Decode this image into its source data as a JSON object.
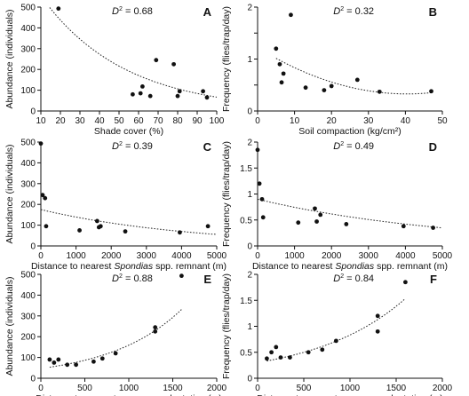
{
  "chart_data": [
    {
      "panel": "A",
      "type": "scatter",
      "xlabel": "Shade cover (%)",
      "ylabel": "Abundance (individuals)",
      "annotation": "D² = 0.68",
      "xlim": [
        10,
        100
      ],
      "ylim": [
        0,
        500
      ],
      "xticks": [
        10,
        20,
        30,
        40,
        50,
        60,
        70,
        80,
        90,
        100
      ],
      "yticks": [
        0,
        100,
        200,
        300,
        400,
        500
      ],
      "points": [
        [
          19,
          493
        ],
        [
          57,
          80
        ],
        [
          61,
          85
        ],
        [
          62,
          118
        ],
        [
          66,
          72
        ],
        [
          69,
          245
        ],
        [
          78,
          225
        ],
        [
          80,
          72
        ],
        [
          81,
          95
        ],
        [
          93,
          95
        ],
        [
          95,
          65
        ]
      ],
      "trend": {
        "model": "exp",
        "a": 700,
        "b": -0.0235
      }
    },
    {
      "panel": "B",
      "type": "scatter",
      "xlabel": "Soil compaction (kg/cm²)",
      "ylabel": "Frequency (flies/trap/day)",
      "annotation": "D² = 0.32",
      "xlim": [
        0,
        50
      ],
      "ylim": [
        0,
        2
      ],
      "xticks": [
        0,
        10,
        20,
        30,
        40,
        50
      ],
      "yticks": [
        0,
        0.5,
        1,
        1.5,
        2
      ],
      "yticklabels": [
        "0",
        "",
        "1",
        "",
        "2"
      ],
      "points": [
        [
          5,
          1.2
        ],
        [
          6,
          0.9
        ],
        [
          6.5,
          0.55
        ],
        [
          7,
          0.72
        ],
        [
          9,
          1.85
        ],
        [
          13,
          0.45
        ],
        [
          18,
          0.4
        ],
        [
          20,
          0.48
        ],
        [
          27,
          0.6
        ],
        [
          33,
          0.37
        ],
        [
          47,
          0.38
        ]
      ],
      "trend": {
        "model": "quadratic",
        "c0": 1.22,
        "c1": -0.044,
        "c2": 0.000543,
        "xmin": 5,
        "xmax": 47
      }
    },
    {
      "panel": "C",
      "type": "scatter",
      "xlabel": "Distance to nearest Spondias spp. remnant (m)",
      "ylabel": "Abundance (individuals)",
      "annotation": "D² = 0.39",
      "xlim": [
        0,
        5000
      ],
      "ylim": [
        0,
        500
      ],
      "xticks": [
        0,
        1000,
        2000,
        3000,
        4000,
        5000
      ],
      "yticks": [
        0,
        100,
        200,
        300,
        400,
        500
      ],
      "points": [
        [
          0,
          493
        ],
        [
          50,
          245
        ],
        [
          120,
          230
        ],
        [
          150,
          95
        ],
        [
          1100,
          75
        ],
        [
          1600,
          120
        ],
        [
          1650,
          90
        ],
        [
          1700,
          95
        ],
        [
          2400,
          70
        ],
        [
          3950,
          65
        ],
        [
          4750,
          95
        ]
      ],
      "trend": {
        "model": "exp",
        "a": 175,
        "b": -0.00023
      }
    },
    {
      "panel": "D",
      "type": "scatter",
      "xlabel": "Distance to nearest Spondias spp. remnant (m)",
      "ylabel": "Frequency (flies/trap/day)",
      "annotation": "D² = 0.49",
      "xlim": [
        0,
        5000
      ],
      "ylim": [
        0,
        2
      ],
      "xticks": [
        0,
        1000,
        2000,
        3000,
        4000,
        5000
      ],
      "yticks": [
        0,
        0.5,
        1,
        1.5,
        2
      ],
      "yticklabels": [
        "0",
        "0.5",
        "1",
        "1.5",
        "2"
      ],
      "points": [
        [
          0,
          1.85
        ],
        [
          50,
          1.2
        ],
        [
          120,
          0.9
        ],
        [
          150,
          0.55
        ],
        [
          1100,
          0.45
        ],
        [
          1550,
          0.72
        ],
        [
          1600,
          0.47
        ],
        [
          1700,
          0.6
        ],
        [
          2400,
          0.42
        ],
        [
          3950,
          0.38
        ],
        [
          4750,
          0.35
        ]
      ],
      "trend": {
        "model": "exp",
        "a": 0.9,
        "b": -0.00019
      }
    },
    {
      "panel": "E",
      "type": "scatter",
      "xlabel": "Distance to nearest sugarcane plantation (m)",
      "ylabel": "Abundance (individuals)",
      "annotation": "D² = 0.88",
      "xlim": [
        0,
        2000
      ],
      "ylim": [
        0,
        500
      ],
      "xticks": [
        0,
        500,
        1000,
        1500,
        2000
      ],
      "yticks": [
        0,
        100,
        200,
        300,
        400,
        500
      ],
      "points": [
        [
          100,
          90
        ],
        [
          150,
          75
        ],
        [
          200,
          90
        ],
        [
          300,
          65
        ],
        [
          400,
          65
        ],
        [
          600,
          80
        ],
        [
          700,
          95
        ],
        [
          850,
          120
        ],
        [
          1300,
          225
        ],
        [
          1300,
          245
        ],
        [
          1600,
          493
        ]
      ],
      "trend": {
        "model": "exp",
        "a": 47,
        "b": 0.00122,
        "xmin": 100,
        "xmax": 1600
      }
    },
    {
      "panel": "F",
      "type": "scatter",
      "xlabel": "Distance to nearest sugarcane plantation (m)",
      "ylabel": "Frequency (flies/trap/day)",
      "annotation": "D² = 0.84",
      "xlim": [
        0,
        2000
      ],
      "ylim": [
        0,
        2
      ],
      "xticks": [
        0,
        500,
        1000,
        1500,
        2000
      ],
      "yticks": [
        0,
        0.5,
        1,
        1.5,
        2
      ],
      "yticklabels": [
        "0",
        "0.5",
        "1",
        "1.5",
        "2"
      ],
      "points": [
        [
          100,
          0.38
        ],
        [
          150,
          0.5
        ],
        [
          200,
          0.6
        ],
        [
          250,
          0.4
        ],
        [
          350,
          0.4
        ],
        [
          550,
          0.5
        ],
        [
          700,
          0.55
        ],
        [
          850,
          0.72
        ],
        [
          1300,
          0.9
        ],
        [
          1300,
          1.2
        ],
        [
          1600,
          1.85
        ]
      ],
      "trend": {
        "model": "exp",
        "a": 0.3,
        "b": 0.00102,
        "xmin": 100,
        "xmax": 1600
      }
    }
  ]
}
